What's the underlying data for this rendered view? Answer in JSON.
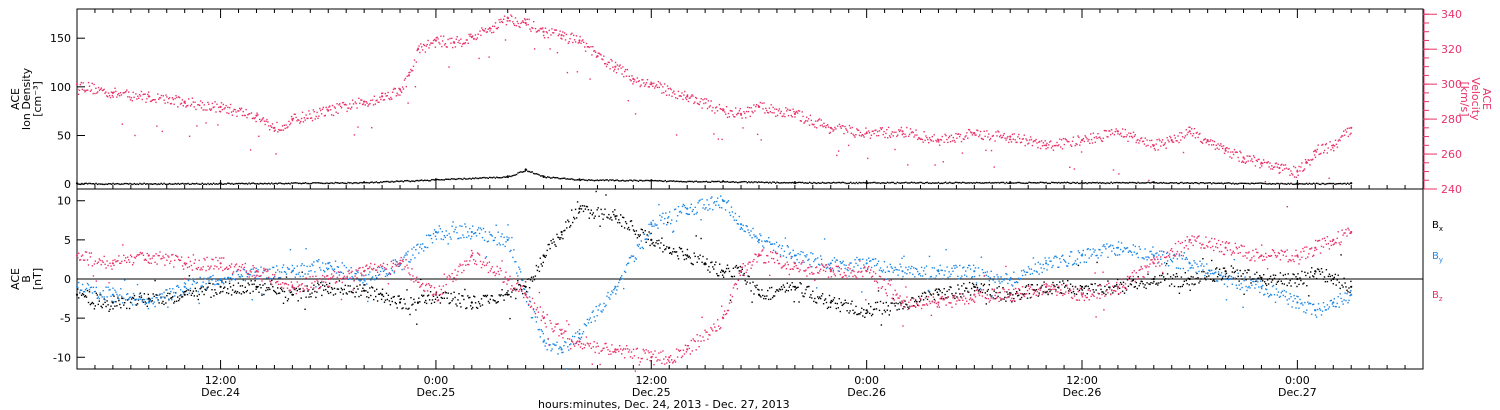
{
  "figure": {
    "xlabel": "hours:minutes, Dec. 24, 2013 - Dec. 27, 2013",
    "time_ticks": [
      {
        "hours": 12,
        "time": "12:00",
        "date": "Dec.24"
      },
      {
        "hours": 24,
        "time": "0:00",
        "date": "Dec.25"
      },
      {
        "hours": 36,
        "time": "12:00",
        "date": "Dec.25"
      },
      {
        "hours": 48,
        "time": "0:00",
        "date": "Dec.26"
      },
      {
        "hours": 60,
        "time": "12:00",
        "date": "Dec.26"
      },
      {
        "hours": 72,
        "time": "0:00",
        "date": "Dec.27"
      }
    ],
    "colors": {
      "black": "#000000",
      "blue": "#1e88e5",
      "pink": "#e8336a"
    }
  },
  "chart_data": [
    {
      "type": "scatter",
      "panel": "ion-density-velocity",
      "xlim_hours": [
        4,
        79
      ],
      "ylabel": [
        "ACE",
        "Ion Density",
        "[cm⁻³]"
      ],
      "ylim": [
        -5,
        180
      ],
      "yticks": [
        0,
        50,
        100,
        150
      ],
      "y2label": [
        "ACE",
        "Velocity",
        "[km/s]"
      ],
      "y2lim": [
        240,
        343
      ],
      "y2ticks": [
        240,
        260,
        280,
        300,
        320,
        340
      ],
      "series": [
        {
          "name": "Velocity",
          "axis": "right",
          "color": "#e8336a",
          "x": [
            4,
            6,
            8,
            10,
            12,
            14,
            15,
            16,
            18,
            20,
            21,
            22,
            22.5,
            23,
            24,
            25,
            26,
            27,
            28,
            29,
            30,
            31,
            32,
            33,
            34,
            35,
            36,
            38,
            40,
            41,
            42,
            44,
            46,
            48,
            50,
            52,
            54,
            56,
            58,
            60,
            62,
            64,
            65,
            66,
            67,
            68,
            69,
            70,
            71,
            72,
            72.5,
            73,
            74,
            75
          ],
          "y": [
            300,
            295,
            293,
            290,
            287,
            282,
            275,
            280,
            285,
            290,
            293,
            297,
            305,
            320,
            325,
            324,
            327,
            332,
            338,
            335,
            330,
            328,
            325,
            316,
            310,
            303,
            300,
            293,
            285,
            283,
            287,
            283,
            275,
            272,
            273,
            268,
            272,
            270,
            265,
            268,
            273,
            265,
            268,
            273,
            268,
            262,
            258,
            255,
            252,
            250,
            255,
            262,
            265,
            275
          ]
        },
        {
          "name": "Ion Density",
          "axis": "left",
          "color": "#000000",
          "x": [
            4,
            12,
            20,
            24,
            28,
            29,
            30,
            32,
            36,
            40,
            44,
            48,
            56,
            64,
            72,
            75
          ],
          "y": [
            1,
            1,
            2,
            5,
            8,
            15,
            8,
            5,
            4,
            3,
            2,
            2,
            2,
            2,
            1,
            1
          ]
        }
      ]
    },
    {
      "type": "scatter",
      "panel": "magnetic-field",
      "xlim_hours": [
        4,
        79
      ],
      "ylabel": [
        "ACE",
        "B",
        "[nT]"
      ],
      "ylim": [
        -11.5,
        11.5
      ],
      "yticks": [
        -10,
        -5,
        0,
        5,
        10
      ],
      "series": [
        {
          "name": "Bx",
          "color": "#000000",
          "x": [
            4,
            6,
            8,
            10,
            12,
            14,
            16,
            18,
            20,
            21,
            22,
            23,
            24,
            26,
            28,
            29,
            30,
            31,
            32,
            34,
            36,
            37,
            38,
            39,
            40,
            41,
            42,
            44,
            46,
            48,
            50,
            52,
            54,
            56,
            58,
            60,
            62,
            64,
            66,
            68,
            70,
            72,
            73,
            74,
            75
          ],
          "y": [
            -2,
            -3,
            -2.5,
            -2,
            -1,
            -1,
            -2,
            -1,
            -1.5,
            -2,
            -3,
            -3,
            -2,
            -3,
            -2,
            -1,
            3,
            6,
            9,
            8,
            5,
            4,
            3,
            2,
            1,
            1,
            -2,
            -1,
            -3,
            -4,
            -3,
            -2,
            -1,
            -2,
            -1,
            -1,
            -1,
            0,
            0,
            1,
            0,
            0,
            1,
            0,
            -1
          ]
        },
        {
          "name": "By",
          "color": "#1e88e5",
          "x": [
            4,
            6,
            8,
            10,
            12,
            14,
            16,
            18,
            20,
            22,
            24,
            26,
            28,
            29,
            30,
            31,
            32,
            34,
            36,
            38,
            40,
            41,
            42,
            44,
            46,
            48,
            50,
            52,
            54,
            56,
            58,
            60,
            62,
            64,
            66,
            68,
            70,
            72,
            73,
            74,
            75
          ],
          "y": [
            -1,
            -2,
            -3,
            -1,
            0,
            1,
            1,
            2,
            0,
            2,
            6,
            6,
            5,
            -2,
            -8,
            -9,
            -7,
            -1,
            7,
            9,
            10,
            7,
            5,
            3,
            2,
            2,
            1,
            1,
            1,
            0,
            2,
            3,
            4,
            3,
            2,
            0,
            -1,
            -3,
            -4,
            -3,
            -2
          ]
        },
        {
          "name": "Bz",
          "color": "#e8336a",
          "x": [
            4,
            6,
            8,
            10,
            12,
            14,
            16,
            18,
            20,
            22,
            24,
            26,
            28,
            29,
            30,
            31,
            32,
            34,
            36,
            37,
            38,
            40,
            41,
            42,
            44,
            46,
            48,
            50,
            52,
            54,
            56,
            58,
            60,
            62,
            64,
            66,
            68,
            70,
            72,
            73,
            74,
            75
          ],
          "y": [
            3,
            2,
            3,
            2,
            2,
            1,
            -1,
            0,
            1,
            2,
            -2,
            3,
            0,
            -2,
            -5,
            -7,
            -8,
            -9,
            -10,
            -10,
            -9,
            -5,
            1,
            3,
            2,
            1,
            1,
            -3,
            -3,
            -2,
            -2,
            -1,
            -2,
            -1,
            2,
            5,
            4,
            3,
            3,
            4,
            5,
            6
          ]
        }
      ]
    }
  ]
}
